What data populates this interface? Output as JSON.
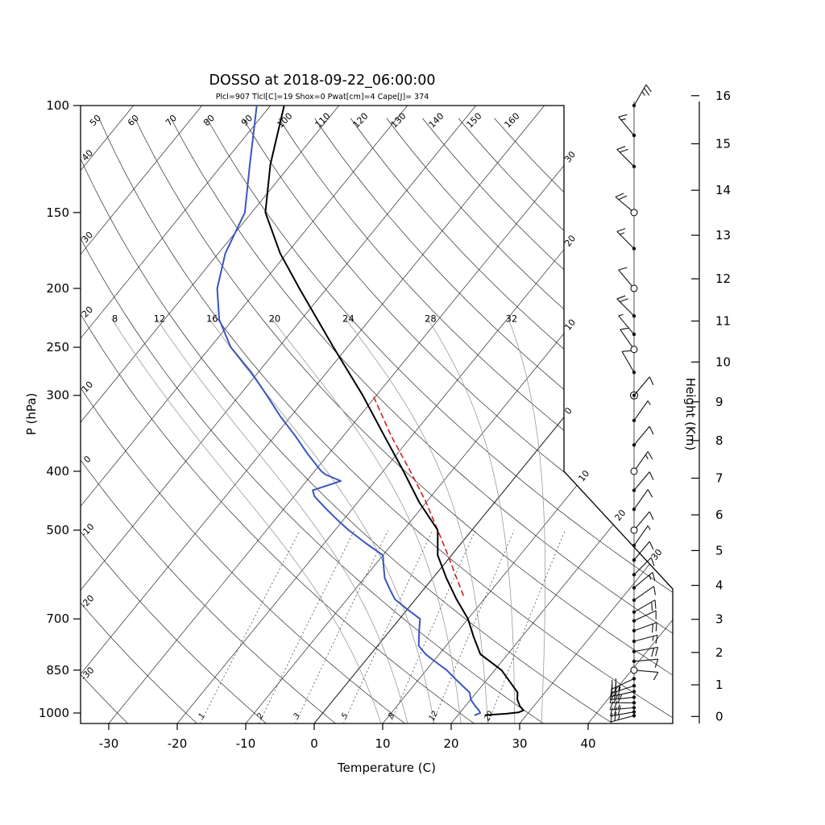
{
  "title": "DOSSO at 2018-09-22_06:00:00",
  "subtitle": "Plcl=907 Tlcl[C]=19 Shox=0 Pwat[cm]=4 Cape[J]= 374",
  "axes": {
    "pressure": {
      "label": "P (hPa)",
      "ticks": [
        100,
        150,
        200,
        250,
        300,
        400,
        500,
        700,
        850,
        1000
      ]
    },
    "temperature": {
      "label": "Temperature (C)",
      "ticks": [
        -30,
        -20,
        -10,
        0,
        10,
        20,
        30,
        40
      ]
    },
    "height": {
      "label": "Height (Km)",
      "ticks": [
        0,
        1,
        2,
        3,
        4,
        5,
        6,
        7,
        8,
        9,
        10,
        11,
        12,
        13,
        14,
        15,
        16
      ]
    }
  },
  "chart_data": {
    "type": "skewt-logp",
    "pressure_range_hpa": [
      100,
      1041
    ],
    "temperature_axis_range_c": [
      -30,
      40
    ],
    "isotherms": {
      "values": [
        -100,
        -90,
        -80,
        -70,
        -60,
        -50,
        -40,
        -30,
        -20,
        -10,
        0,
        10,
        20,
        30,
        40
      ],
      "right_edge_labels": [
        {
          "value": -30,
          "text": "30"
        },
        {
          "value": -20,
          "text": "20"
        },
        {
          "value": -10,
          "text": "10"
        },
        {
          "value": 0,
          "text": "0"
        },
        {
          "value": 10,
          "text": "10"
        },
        {
          "value": 20,
          "text": "20"
        },
        {
          "value": 30,
          "text": "30"
        }
      ]
    },
    "dry_adiabats": {
      "values": [
        -30,
        -20,
        -10,
        0,
        10,
        20,
        30,
        40,
        50,
        60,
        70,
        80,
        90,
        100,
        110,
        120,
        130,
        140,
        150,
        160
      ],
      "top_labels": [
        50,
        60,
        70,
        80,
        90,
        100,
        110,
        120,
        130,
        140,
        150,
        160
      ],
      "left_labels": [
        {
          "value": 40,
          "text": "40"
        },
        {
          "value": 30,
          "text": "30"
        },
        {
          "value": 20,
          "text": "20"
        },
        {
          "value": 10,
          "text": "10"
        },
        {
          "value": 0,
          "text": "0"
        },
        {
          "value": -10,
          "text": "-10"
        },
        {
          "value": -20,
          "text": "-20"
        },
        {
          "value": -30,
          "text": "-30"
        }
      ]
    },
    "moist_adiabats": {
      "values": [
        8,
        12,
        16,
        20,
        24,
        28,
        32
      ],
      "label_pressure_hpa": 225
    },
    "mixing_ratio_g_kg": {
      "values": [
        1,
        2,
        3,
        5,
        8,
        12,
        20
      ],
      "top_pressure_hpa": 500
    },
    "temperature_profile_p_T": [
      [
        1008,
        24
      ],
      [
        1002,
        27
      ],
      [
        998,
        28.5
      ],
      [
        990,
        29
      ],
      [
        975,
        28
      ],
      [
        950,
        26.8
      ],
      [
        925,
        26
      ],
      [
        850,
        21
      ],
      [
        800,
        16
      ],
      [
        750,
        13
      ],
      [
        700,
        10
      ],
      [
        650,
        6
      ],
      [
        600,
        2
      ],
      [
        550,
        -2
      ],
      [
        500,
        -5
      ],
      [
        450,
        -11
      ],
      [
        400,
        -17
      ],
      [
        350,
        -24
      ],
      [
        300,
        -32
      ],
      [
        250,
        -42
      ],
      [
        200,
        -54
      ],
      [
        175,
        -61
      ],
      [
        150,
        -68
      ],
      [
        125,
        -73
      ],
      [
        100,
        -78
      ]
    ],
    "dewpoint_profile_p_T": [
      [
        1008,
        22.5
      ],
      [
        1000,
        23
      ],
      [
        990,
        22.5
      ],
      [
        975,
        21.5
      ],
      [
        950,
        20
      ],
      [
        925,
        19
      ],
      [
        900,
        17
      ],
      [
        875,
        15
      ],
      [
        850,
        13
      ],
      [
        825,
        10.5
      ],
      [
        800,
        8
      ],
      [
        775,
        6
      ],
      [
        750,
        5
      ],
      [
        725,
        4
      ],
      [
        700,
        3
      ],
      [
        675,
        0
      ],
      [
        650,
        -3
      ],
      [
        625,
        -5
      ],
      [
        600,
        -7
      ],
      [
        575,
        -8.5
      ],
      [
        550,
        -10
      ],
      [
        525,
        -14
      ],
      [
        500,
        -18
      ],
      [
        480,
        -21
      ],
      [
        460,
        -24
      ],
      [
        440,
        -27
      ],
      [
        430,
        -28
      ],
      [
        420,
        -26
      ],
      [
        415,
        -25
      ],
      [
        405,
        -28
      ],
      [
        400,
        -29
      ],
      [
        375,
        -33
      ],
      [
        350,
        -37
      ],
      [
        325,
        -41.5
      ],
      [
        300,
        -46
      ],
      [
        275,
        -51
      ],
      [
        250,
        -57
      ],
      [
        225,
        -62
      ],
      [
        200,
        -66
      ],
      [
        175,
        -69
      ],
      [
        150,
        -71
      ],
      [
        125,
        -76
      ],
      [
        100,
        -82
      ]
    ],
    "parcel_profile_p_T": [
      [
        640,
        6.5
      ],
      [
        600,
        3.5
      ],
      [
        550,
        -0.5
      ],
      [
        500,
        -5
      ],
      [
        450,
        -10
      ],
      [
        400,
        -16
      ],
      [
        350,
        -23
      ],
      [
        300,
        -30.5
      ]
    ],
    "wind_barbs": [
      {
        "p": 100,
        "staff_angle_deg": 30,
        "speed_kt": 25,
        "symbol": "d"
      },
      {
        "p": 112,
        "staff_angle_deg": -40,
        "speed_kt": 15,
        "symbol": "d"
      },
      {
        "p": 126,
        "staff_angle_deg": -45,
        "speed_kt": 20,
        "symbol": "d"
      },
      {
        "p": 150,
        "staff_angle_deg": -50,
        "speed_kt": 20,
        "symbol": "c"
      },
      {
        "p": 172,
        "staff_angle_deg": -45,
        "speed_kt": 15,
        "symbol": "d"
      },
      {
        "p": 200,
        "staff_angle_deg": -40,
        "speed_kt": 10,
        "symbol": "c"
      },
      {
        "p": 222,
        "staff_angle_deg": -45,
        "speed_kt": 20,
        "symbol": "d"
      },
      {
        "p": 238,
        "staff_angle_deg": -40,
        "speed_kt": 5,
        "symbol": "d"
      },
      {
        "p": 252,
        "staff_angle_deg": -35,
        "speed_kt": 10,
        "symbol": "c"
      },
      {
        "p": 275,
        "staff_angle_deg": -30,
        "speed_kt": 10,
        "symbol": "d"
      },
      {
        "p": 300,
        "staff_angle_deg": 40,
        "speed_kt": 10,
        "symbol": "cd"
      },
      {
        "p": 330,
        "staff_angle_deg": 35,
        "speed_kt": 5,
        "symbol": "d"
      },
      {
        "p": 362,
        "staff_angle_deg": 40,
        "speed_kt": 10,
        "symbol": "d"
      },
      {
        "p": 400,
        "staff_angle_deg": 35,
        "speed_kt": 15,
        "symbol": "c"
      },
      {
        "p": 430,
        "staff_angle_deg": 40,
        "speed_kt": 10,
        "symbol": "d"
      },
      {
        "p": 462,
        "staff_angle_deg": 35,
        "speed_kt": 10,
        "symbol": "d"
      },
      {
        "p": 500,
        "staff_angle_deg": 40,
        "speed_kt": 10,
        "symbol": "c"
      },
      {
        "p": 530,
        "staff_angle_deg": 35,
        "speed_kt": 5,
        "symbol": "d"
      },
      {
        "p": 560,
        "staff_angle_deg": 40,
        "speed_kt": 10,
        "symbol": "d"
      },
      {
        "p": 592,
        "staff_angle_deg": 45,
        "speed_kt": 10,
        "symbol": "d"
      },
      {
        "p": 622,
        "staff_angle_deg": 50,
        "speed_kt": 15,
        "symbol": "d"
      },
      {
        "p": 652,
        "staff_angle_deg": 55,
        "speed_kt": 10,
        "symbol": "d"
      },
      {
        "p": 682,
        "staff_angle_deg": 60,
        "speed_kt": 20,
        "symbol": "d"
      },
      {
        "p": 705,
        "staff_angle_deg": 65,
        "speed_kt": 10,
        "symbol": "d"
      },
      {
        "p": 732,
        "staff_angle_deg": 70,
        "speed_kt": 20,
        "symbol": "d"
      },
      {
        "p": 762,
        "staff_angle_deg": 75,
        "speed_kt": 15,
        "symbol": "d"
      },
      {
        "p": 792,
        "staff_angle_deg": 80,
        "speed_kt": 20,
        "symbol": "d"
      },
      {
        "p": 822,
        "staff_angle_deg": 85,
        "speed_kt": 10,
        "symbol": "d"
      },
      {
        "p": 850,
        "staff_angle_deg": 95,
        "speed_kt": 10,
        "symbol": "c"
      },
      {
        "p": 878,
        "staff_angle_deg": -115,
        "speed_kt": 20,
        "symbol": "d"
      },
      {
        "p": 902,
        "staff_angle_deg": -108,
        "speed_kt": 25,
        "symbol": "d"
      },
      {
        "p": 922,
        "staff_angle_deg": -102,
        "speed_kt": 30,
        "symbol": "d"
      },
      {
        "p": 942,
        "staff_angle_deg": -96,
        "speed_kt": 25,
        "symbol": "d"
      },
      {
        "p": 962,
        "staff_angle_deg": -90,
        "speed_kt": 30,
        "symbol": "d"
      },
      {
        "p": 980,
        "staff_angle_deg": -95,
        "speed_kt": 25,
        "symbol": "d"
      },
      {
        "p": 996,
        "staff_angle_deg": -100,
        "speed_kt": 30,
        "symbol": "d"
      },
      {
        "p": 1010,
        "staff_angle_deg": -105,
        "speed_kt": 25,
        "symbol": "d"
      }
    ],
    "colors": {
      "temperature": "#000000",
      "dewpoint": "#3a55c0",
      "parcel": "#cc2222",
      "subtitle": "#a63a20",
      "moist_adiabat": "#9a9a9a",
      "grid": "#2a2a2a",
      "mixing": "#555555"
    }
  }
}
